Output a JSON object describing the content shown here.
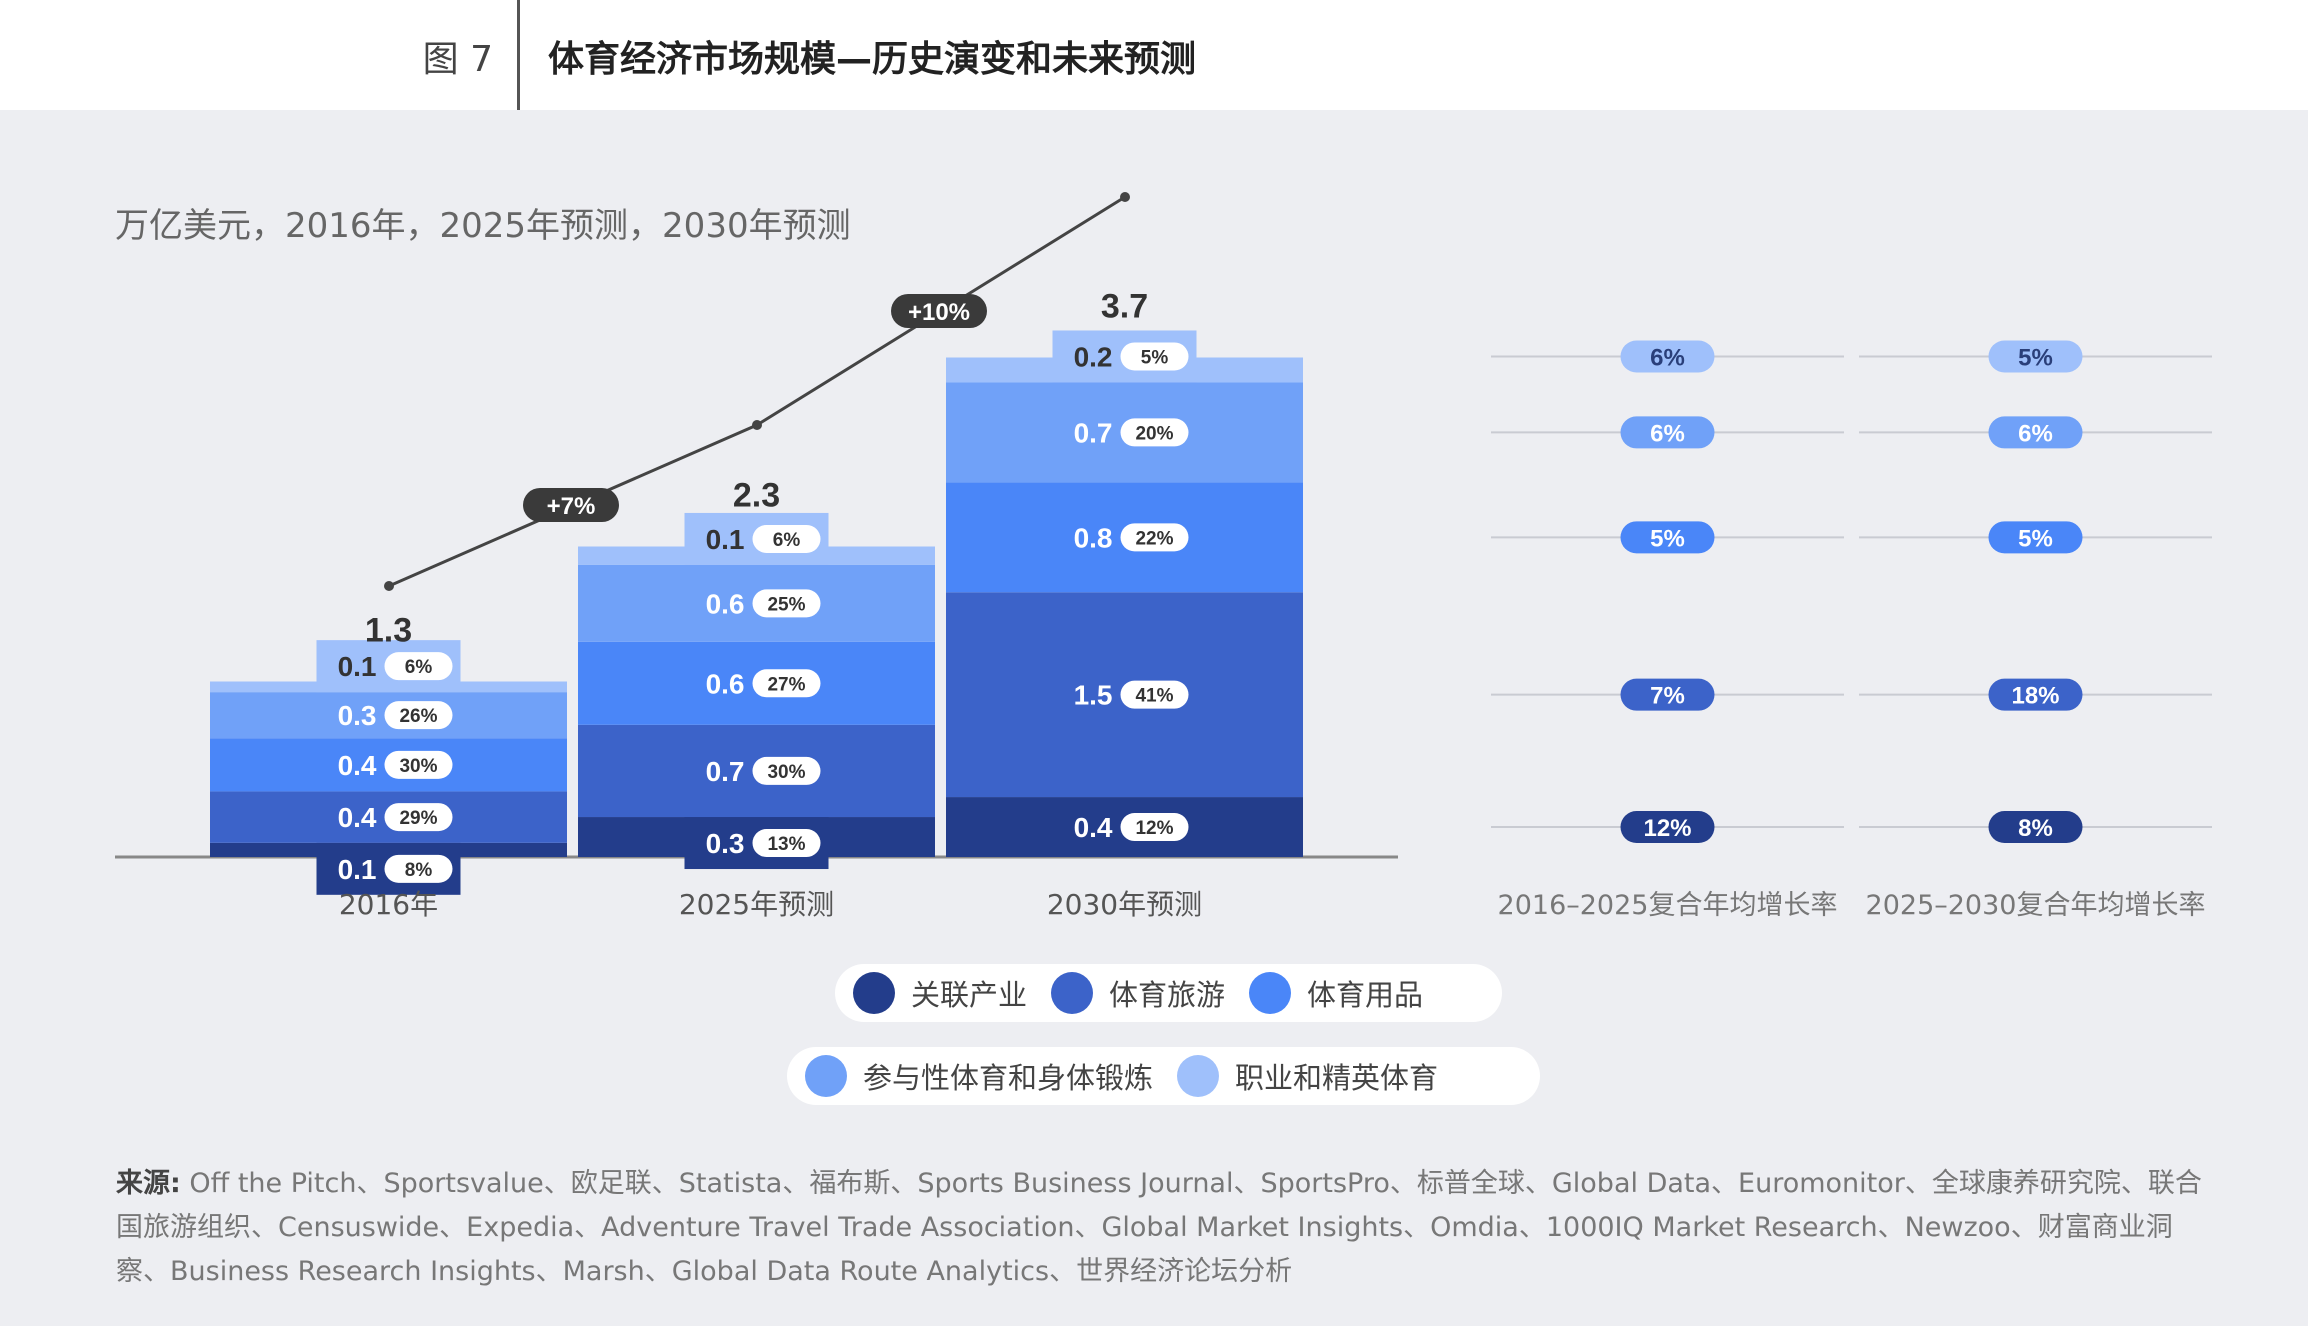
{
  "header": {
    "figure_no": "图 7",
    "title": "体育经济市场规模—历史演变和未来预测"
  },
  "subtitle": "万亿美元，2016年，2025年预测，2030年预测",
  "chart_data": {
    "type": "bar",
    "stacked": true,
    "unit": "万亿美元",
    "categories": [
      "2016年",
      "2025年预测",
      "2030年预测"
    ],
    "totals": [
      "1.3",
      "2.3",
      "3.7"
    ],
    "series": [
      {
        "name": "关联产业",
        "color": "#233d8b",
        "values": [
          0.1,
          0.3,
          0.4
        ],
        "shares": [
          "8%",
          "13%",
          "12%"
        ]
      },
      {
        "name": "体育旅游",
        "color": "#3c63c9",
        "values": [
          0.4,
          0.7,
          1.5
        ],
        "shares": [
          "29%",
          "30%",
          "41%"
        ]
      },
      {
        "name": "体育用品",
        "color": "#4a86f8",
        "values": [
          0.4,
          0.6,
          0.8
        ],
        "shares": [
          "30%",
          "27%",
          "22%"
        ]
      },
      {
        "name": "参与性体育和身体锻炼",
        "color": "#70a1f8",
        "values": [
          0.3,
          0.6,
          0.7
        ],
        "shares": [
          "26%",
          "25%",
          "20%"
        ]
      },
      {
        "name": "职业和精英体育",
        "color": "#9fc0fb",
        "values": [
          0.1,
          0.1,
          0.2
        ],
        "shares": [
          "6%",
          "6%",
          "5%"
        ]
      }
    ],
    "growth_badges": [
      "+7%",
      "+10%"
    ],
    "cagr": {
      "columns": [
        "2016–2025复合年均增长率",
        "2025–2030复合年均增长率"
      ],
      "values": [
        [
          "12%",
          "7%",
          "5%",
          "6%",
          "6%"
        ],
        [
          "8%",
          "18%",
          "5%",
          "6%",
          "5%"
        ]
      ]
    }
  },
  "source": {
    "label": "来源:",
    "text": "Off the Pitch、Sportsvalue、欧足联、Statista、福布斯、Sports Business Journal、SportsPro、标普全球、Global Data、Euromonitor、全球康养研究院、联合国旅游组织、Censuswide、Expedia、Adventure Travel Trade Association、Global Market Insights、Omdia、1000IQ Market Research、Newzoo、财富商业洞察、Business Research Insights、Marsh、Global Data Route Analytics、世界经济论坛分析"
  }
}
